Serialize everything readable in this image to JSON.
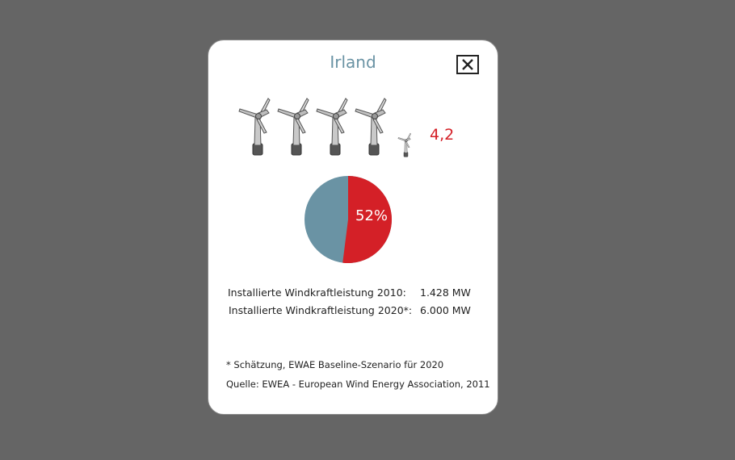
{
  "popup": {
    "title": "Irland",
    "close_icon": "close-icon",
    "turbine_count_display": "4,2",
    "turbines": {
      "full": 4,
      "partial_fraction": 0.2,
      "icon": "wind-turbine-icon"
    },
    "pie": {
      "share_percent": 52,
      "label": "52%",
      "share_color": "#d42027",
      "rest_color": "#6a93a4"
    },
    "stats": [
      {
        "label": "Installierte Windkraftleistung 2010:",
        "value": "1.428 MW"
      },
      {
        "label": "Installierte Windkraftleistung 2020*:",
        "value": "6.000 MW"
      }
    ],
    "footnote": "* Schätzung, EWAE Baseline-Szenario für 2020",
    "source": "Quelle: EWEA - European Wind Energy Association, 2011"
  },
  "colors": {
    "background": "#656565",
    "title": "#6a93a4",
    "accent": "#d42027"
  }
}
